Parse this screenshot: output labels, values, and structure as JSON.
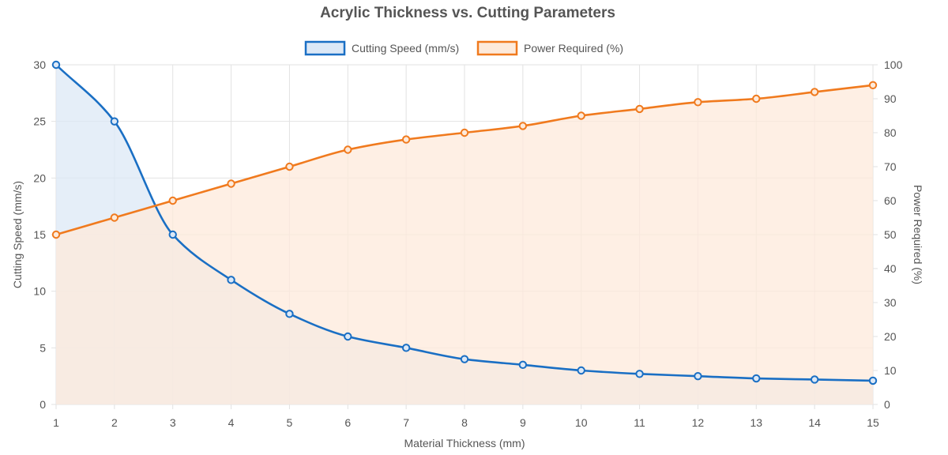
{
  "chart_data": {
    "type": "line",
    "title": "Acrylic Thickness vs. Cutting Parameters",
    "x": [
      1,
      2,
      3,
      4,
      5,
      6,
      7,
      8,
      9,
      10,
      11,
      12,
      13,
      14,
      15
    ],
    "xlabel": "Material Thickness (mm)",
    "ylabel": "Cutting Speed (mm/s)",
    "y2label": "Power Required (%)",
    "xlim": [
      1,
      15
    ],
    "ylim": [
      0,
      30
    ],
    "y2lim": [
      0,
      100
    ],
    "x_ticks": [
      "1",
      "2",
      "3",
      "4",
      "5",
      "6",
      "7",
      "8",
      "9",
      "10",
      "11",
      "12",
      "13",
      "14",
      "15"
    ],
    "y_ticks": [
      "0",
      "5",
      "10",
      "15",
      "20",
      "25",
      "30"
    ],
    "y2_ticks": [
      "0",
      "10",
      "20",
      "30",
      "40",
      "50",
      "60",
      "70",
      "80",
      "90",
      "100"
    ],
    "grid": true,
    "legend_position": "top",
    "series": [
      {
        "name": "Cutting Speed (mm/s)",
        "axis": "left",
        "color": "#1a6fc4",
        "fill": "#dce8f6",
        "filled": true,
        "values": [
          30,
          25,
          15,
          11,
          8,
          6,
          5,
          4,
          3.5,
          3,
          2.7,
          2.5,
          2.3,
          2.2,
          2.1
        ]
      },
      {
        "name": "Power Required (%)",
        "axis": "right",
        "color": "#f07a1e",
        "fill": "#fdeadb",
        "filled": true,
        "values": [
          50,
          55,
          60,
          65,
          70,
          75,
          78,
          80,
          82,
          85,
          87,
          89,
          90,
          92,
          94
        ]
      }
    ]
  }
}
